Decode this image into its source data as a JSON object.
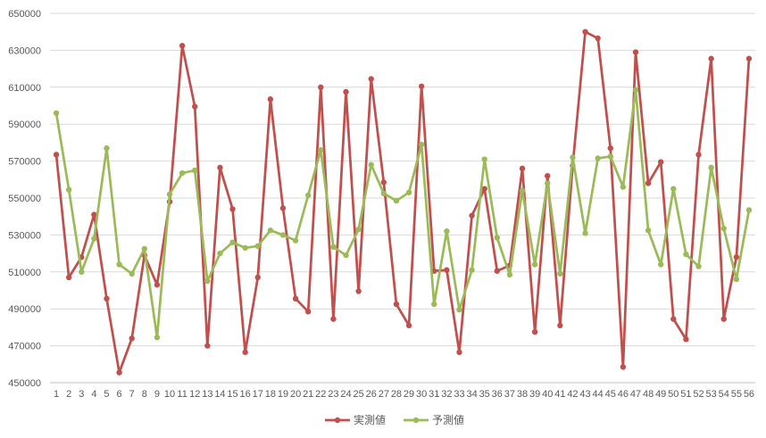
{
  "chart_data": {
    "type": "line",
    "title": "",
    "xlabel": "",
    "ylabel": "",
    "ylim": [
      450000,
      650000
    ],
    "yticks": [
      450000,
      470000,
      490000,
      510000,
      530000,
      550000,
      570000,
      590000,
      610000,
      630000,
      650000
    ],
    "categories": [
      "1",
      "2",
      "3",
      "4",
      "5",
      "6",
      "7",
      "8",
      "9",
      "10",
      "11",
      "12",
      "13",
      "14",
      "15",
      "16",
      "17",
      "18",
      "19",
      "20",
      "21",
      "22",
      "23",
      "24",
      "25",
      "26",
      "27",
      "28",
      "29",
      "30",
      "31",
      "32",
      "33",
      "34",
      "35",
      "36",
      "37",
      "38",
      "39",
      "40",
      "41",
      "42",
      "43",
      "44",
      "45",
      "46",
      "47",
      "48",
      "49",
      "50",
      "51",
      "52",
      "53",
      "54",
      "55",
      "56"
    ],
    "grid": true,
    "legend_position": "bottom",
    "series": [
      {
        "name": "実測値",
        "color": "#c0504d",
        "values": [
          573500,
          507000,
          518000,
          541000,
          495500,
          455500,
          474000,
          519000,
          503000,
          548000,
          632500,
          599500,
          470000,
          566500,
          544000,
          466500,
          507000,
          603500,
          544500,
          495500,
          488500,
          610000,
          484500,
          607500,
          499500,
          614500,
          558500,
          492500,
          481000,
          610500,
          510500,
          511000,
          466500,
          540500,
          555000,
          510500,
          513500,
          566000,
          477500,
          562000,
          481000,
          567500,
          640000,
          636500,
          577000,
          458500,
          629000,
          558000,
          569500,
          484500,
          473500,
          573500,
          625500,
          484500,
          518000,
          625500
        ]
      },
      {
        "name": "予測値",
        "color": "#9bbb59",
        "values": [
          596000,
          554500,
          510000,
          528000,
          577000,
          514000,
          509000,
          522500,
          474500,
          552000,
          563500,
          565000,
          505000,
          520000,
          526000,
          523000,
          524000,
          532500,
          530000,
          527000,
          551500,
          576000,
          523500,
          519000,
          533000,
          568000,
          552500,
          548500,
          553000,
          579000,
          492500,
          532000,
          489500,
          511000,
          571000,
          528500,
          508500,
          554000,
          514000,
          558000,
          509000,
          572000,
          531000,
          571500,
          572500,
          556000,
          608500,
          532500,
          514000,
          555000,
          519500,
          513000,
          566500,
          533500,
          506000,
          543500
        ]
      }
    ]
  }
}
